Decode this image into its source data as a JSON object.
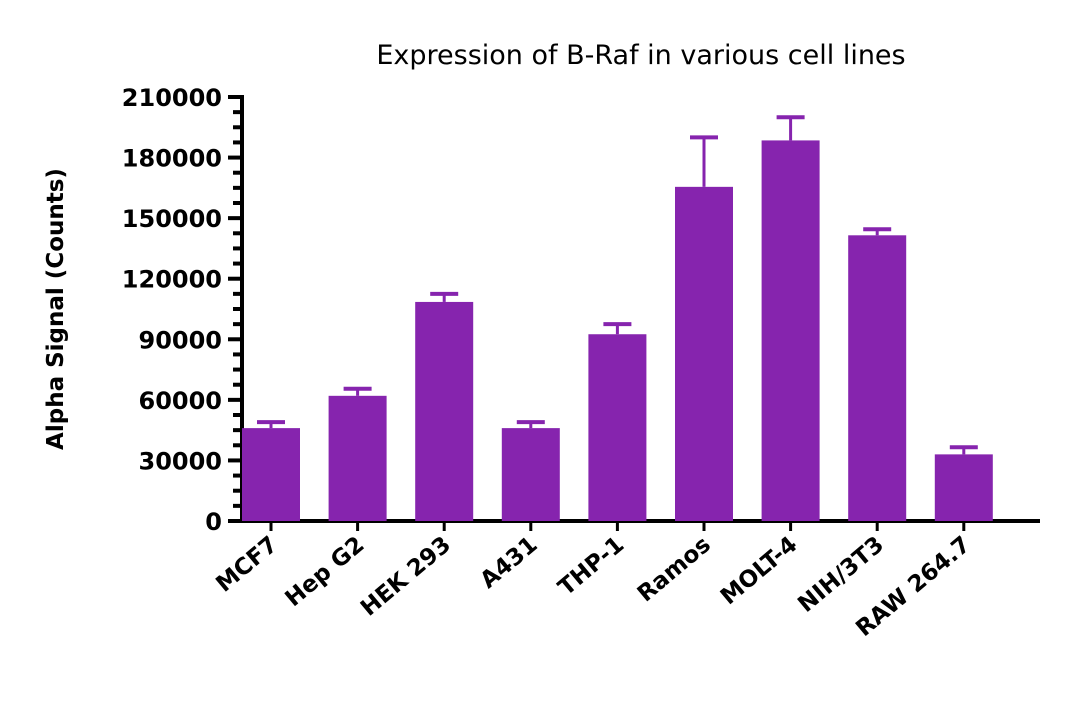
{
  "chart_data": {
    "type": "bar",
    "title": "Expression of B-Raf in various cell lines",
    "xlabel": "",
    "ylabel": "Alpha Signal (Counts)",
    "ylim": [
      0,
      210000
    ],
    "yticks": [
      0,
      30000,
      60000,
      90000,
      120000,
      150000,
      180000,
      210000
    ],
    "grid": false,
    "color": "#8624AE",
    "categories": [
      "MCF7",
      "Hep G2",
      "HEK 293",
      "A431",
      "THP-1",
      "Ramos",
      "MOLT-4",
      "NIH/3T3",
      "RAW 264.7"
    ],
    "values": [
      46000,
      62000,
      108500,
      46000,
      92500,
      165500,
      188500,
      141500,
      33000
    ],
    "error_upper": [
      3000,
      3500,
      4000,
      3000,
      5000,
      24500,
      11500,
      3000,
      3500
    ]
  }
}
